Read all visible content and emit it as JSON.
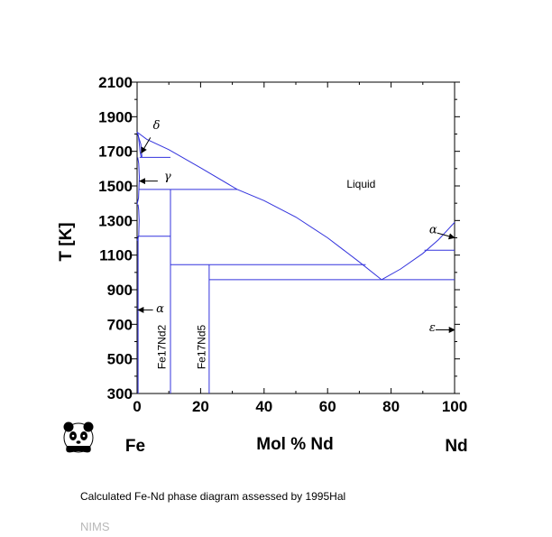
{
  "caption": "Calculated Fe-Nd phase diagram assessed by 1995Hal",
  "credit": "NIMS",
  "logo": "panda-logo",
  "colors": {
    "phase_lines": "#3333dd",
    "axes": "#000000",
    "credit": "#b8b8b8"
  },
  "chart_data": {
    "type": "phase-diagram",
    "title": "",
    "xlabel": "Mol % Nd",
    "ylabel": "T [K]",
    "xlim": [
      0,
      100
    ],
    "ylim": [
      300,
      2100
    ],
    "x_ticks": [
      "0",
      "20",
      "40",
      "60",
      "80",
      "100"
    ],
    "x_tick_values": [
      0,
      20,
      40,
      60,
      80,
      100
    ],
    "x_minor_ticks": [
      10,
      30,
      50,
      70,
      90
    ],
    "y_ticks": [
      "300",
      "500",
      "700",
      "900",
      "1100",
      "1300",
      "1500",
      "1700",
      "1900",
      "2100"
    ],
    "y_tick_values": [
      300,
      500,
      700,
      900,
      1100,
      1300,
      1500,
      1700,
      1900,
      2100
    ],
    "y_minor_ticks": [
      400,
      600,
      800,
      1000,
      1200,
      1400,
      1600,
      1800,
      2000
    ],
    "end_labels": {
      "left": "Fe",
      "right": "Nd"
    },
    "curves": [
      {
        "name": "liquidus-fe",
        "points": [
          [
            0,
            1811
          ],
          [
            3,
            1770
          ],
          [
            10,
            1710
          ],
          [
            20,
            1605
          ],
          [
            31.5,
            1480
          ],
          [
            40,
            1415
          ],
          [
            50,
            1320
          ],
          [
            60,
            1200
          ],
          [
            70,
            1060
          ],
          [
            77,
            958
          ]
        ]
      },
      {
        "name": "liquidus-nd",
        "points": [
          [
            77,
            958
          ],
          [
            83,
            1020
          ],
          [
            90,
            1110
          ],
          [
            95,
            1190
          ],
          [
            100,
            1289
          ]
        ]
      },
      {
        "name": "delta-lower",
        "points": [
          [
            0,
            1811
          ],
          [
            1.2,
            1740
          ],
          [
            1.5,
            1670
          ],
          [
            1.3,
            1665
          ]
        ]
      },
      {
        "name": "delta-upper",
        "points": [
          [
            1.3,
            1665
          ],
          [
            0.9,
            1700
          ],
          [
            0.7,
            1740
          ],
          [
            0.3,
            1800
          ]
        ]
      },
      {
        "name": "gamma-solvus",
        "points": [
          [
            0,
            1394
          ],
          [
            0.45,
            1430
          ],
          [
            0.7,
            1550
          ],
          [
            0.5,
            1630
          ],
          [
            0.2,
            1665
          ]
        ]
      },
      {
        "name": "alpha-solvus",
        "points": [
          [
            0,
            1184
          ],
          [
            0.5,
            1210
          ],
          [
            0.65,
            1300
          ],
          [
            0.5,
            1360
          ],
          [
            0.3,
            1392
          ]
        ]
      },
      {
        "name": "gamma-to-alpha-lower",
        "points": [
          [
            0.3,
            1209
          ],
          [
            0.3,
            300
          ]
        ]
      },
      {
        "name": "Fe17Nd2-line",
        "points": [
          [
            10.5,
            1480
          ],
          [
            10.5,
            300
          ]
        ]
      },
      {
        "name": "Fe17Nd5-line",
        "points": [
          [
            22.7,
            1045
          ],
          [
            22.7,
            300
          ]
        ]
      },
      {
        "name": "Nd-alpha-beta",
        "points": [
          [
            100,
            1128
          ],
          [
            90.5,
            1128
          ]
        ]
      }
    ],
    "invariant_lines": [
      {
        "T": 1665,
        "x_from": 0.8,
        "x_to": 10.5
      },
      {
        "T": 1480,
        "x_from": 0.7,
        "x_to": 31.5
      },
      {
        "T": 1209,
        "x_from": 0.3,
        "x_to": 10.5
      },
      {
        "T": 1045,
        "x_from": 10.5,
        "x_to": 72
      },
      {
        "T": 958,
        "x_from": 22.7,
        "x_to": 100
      }
    ],
    "annotations": [
      {
        "text": "Liquid",
        "x": 66,
        "y": 1490,
        "kind": "region"
      },
      {
        "text": "δ",
        "x": 5,
        "y": 1830,
        "kind": "greek"
      },
      {
        "text": "γ",
        "x": 8.5,
        "y": 1535,
        "kind": "greek"
      },
      {
        "text": "α",
        "x": 6,
        "y": 770,
        "kind": "greek"
      },
      {
        "text": "α",
        "x": 92,
        "y": 1225,
        "kind": "greek"
      },
      {
        "text": "ε",
        "x": 92,
        "y": 660,
        "kind": "greek"
      },
      {
        "text": "Fe17Nd2",
        "x": 9,
        "y": 440,
        "kind": "rotated"
      },
      {
        "text": "Fe17Nd5",
        "x": 21.5,
        "y": 440,
        "kind": "rotated"
      }
    ],
    "arrows": [
      {
        "from": [
          4.2,
          1780
        ],
        "to": [
          1.3,
          1690
        ]
      },
      {
        "from": [
          6.5,
          1528
        ],
        "to": [
          0.8,
          1528
        ]
      },
      {
        "from": [
          5,
          783
        ],
        "to": [
          0.3,
          783
        ]
      },
      {
        "from": [
          94.5,
          1228
        ],
        "to": [
          100,
          1200
        ]
      },
      {
        "from": [
          94,
          668
        ],
        "to": [
          100,
          668
        ]
      }
    ]
  }
}
